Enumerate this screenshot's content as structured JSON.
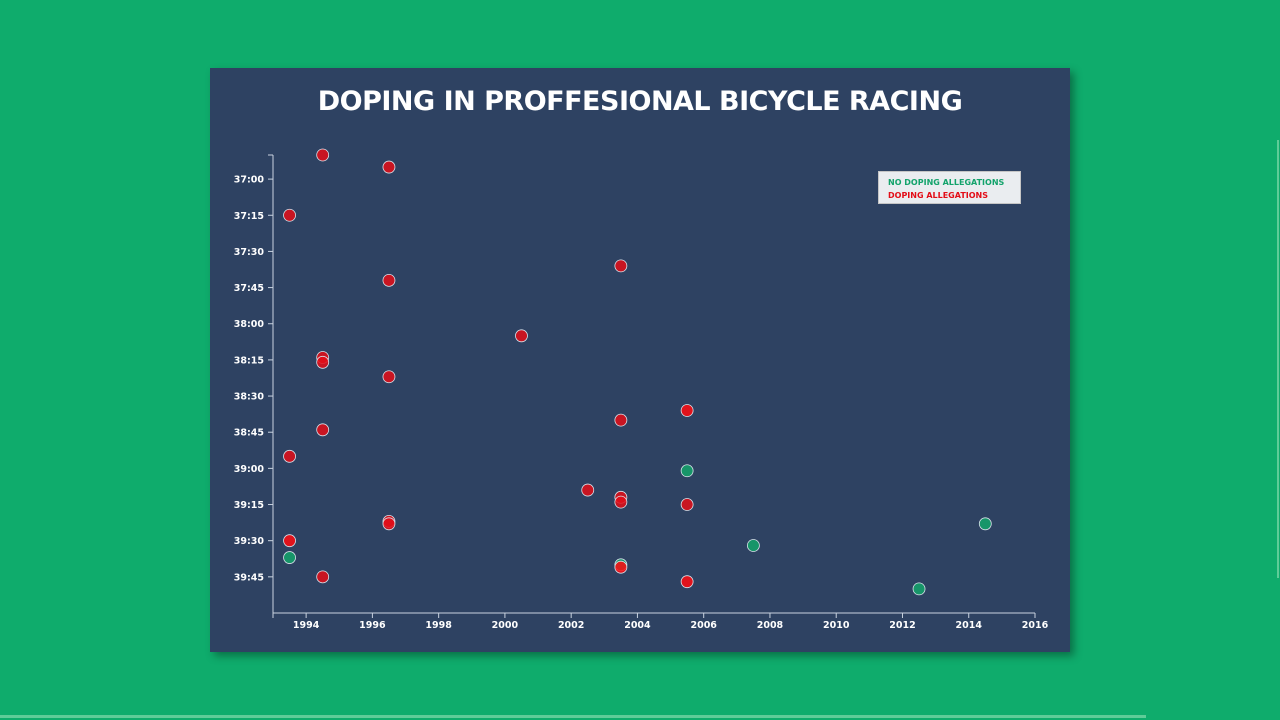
{
  "chart_data": {
    "type": "scatter",
    "title": "DOPING IN PROFFESIONAL BICYCLE RACING",
    "xlabel": "",
    "ylabel": "",
    "xlim": [
      1993,
      2016
    ],
    "ylim_seconds": [
      2210,
      2400
    ],
    "x_ticks": [
      "1994",
      "1996",
      "1998",
      "2000",
      "2002",
      "2004",
      "2006",
      "2008",
      "2010",
      "2012",
      "2014",
      "2016"
    ],
    "y_ticks": [
      "37:00",
      "37:15",
      "37:30",
      "37:45",
      "38:00",
      "38:15",
      "38:30",
      "38:45",
      "39:00",
      "39:15",
      "39:30",
      "39:45"
    ],
    "legend": {
      "placement": "top-right",
      "items": [
        "NO DOPING ALLEGATIONS",
        "DOPING ALLEGATIONS"
      ]
    },
    "colors": {
      "no_doping": "#13a36b",
      "doping": "#e30d17",
      "doping_bright": "#ff0a10",
      "background": "#2e4262",
      "page": "#0fac6c"
    },
    "series": [
      {
        "name": "DOPING ALLEGATIONS",
        "points": [
          {
            "year": 1995,
            "time": "36:50"
          },
          {
            "year": 1997,
            "time": "36:55"
          },
          {
            "year": 1994,
            "time": "37:15"
          },
          {
            "year": 2004,
            "time": "37:36"
          },
          {
            "year": 1997,
            "time": "37:42"
          },
          {
            "year": 2001,
            "time": "38:05"
          },
          {
            "year": 1995,
            "time": "38:14"
          },
          {
            "year": 1995,
            "time": "38:16"
          },
          {
            "year": 1997,
            "time": "38:22"
          },
          {
            "year": 2004,
            "time": "38:40"
          },
          {
            "year": 2006,
            "time": "38:36"
          },
          {
            "year": 1995,
            "time": "38:44"
          },
          {
            "year": 1994,
            "time": "38:55"
          },
          {
            "year": 2003,
            "time": "39:09"
          },
          {
            "year": 2004,
            "time": "39:12"
          },
          {
            "year": 2004,
            "time": "39:14"
          },
          {
            "year": 2006,
            "time": "39:15"
          },
          {
            "year": 1997,
            "time": "39:22"
          },
          {
            "year": 1997,
            "time": "39:23"
          },
          {
            "year": 1994,
            "time": "39:30"
          },
          {
            "year": 2004,
            "time": "39:41"
          },
          {
            "year": 1995,
            "time": "39:45"
          },
          {
            "year": 2006,
            "time": "39:47"
          }
        ]
      },
      {
        "name": "NO DOPING ALLEGATIONS",
        "points": [
          {
            "year": 2006,
            "time": "39:01"
          },
          {
            "year": 2015,
            "time": "39:23"
          },
          {
            "year": 2008,
            "time": "39:32"
          },
          {
            "year": 1994,
            "time": "39:37"
          },
          {
            "year": 2004,
            "time": "39:40"
          },
          {
            "year": 2013,
            "time": "39:50"
          }
        ]
      }
    ]
  }
}
